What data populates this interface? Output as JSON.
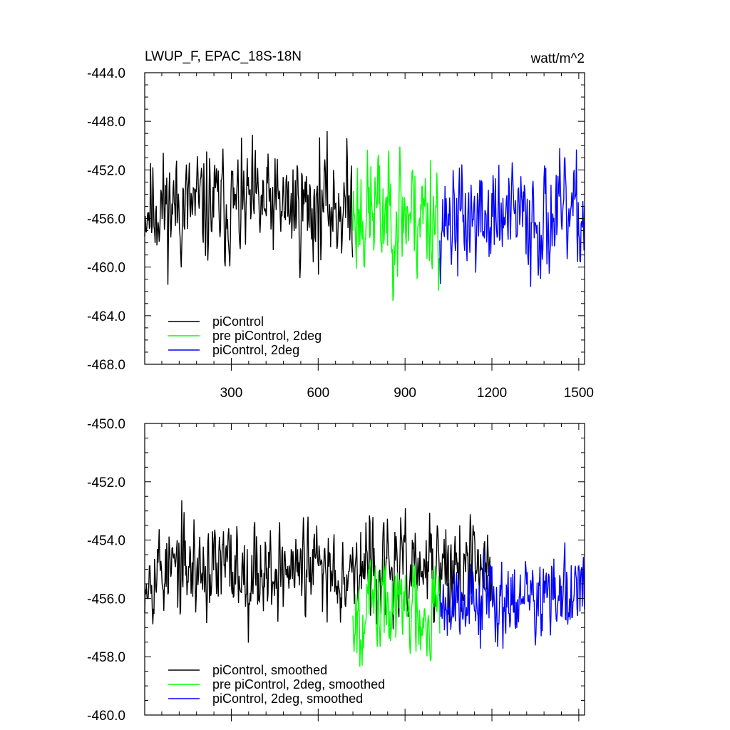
{
  "chart_data": [
    {
      "type": "line",
      "title": "LWUP_F, EPAC_18S-18N",
      "units": "watt/m^2",
      "xlabel": "",
      "ylabel": "",
      "xlim": [
        1,
        1520
      ],
      "ylim": [
        -468,
        -444
      ],
      "xticks": [
        300,
        600,
        900,
        1200,
        1500
      ],
      "xtick_labels": [
        "300",
        "600",
        "900",
        "1200",
        "1500"
      ],
      "yticks": [
        -444,
        -448,
        -452,
        -456,
        -460,
        -464,
        -468
      ],
      "ytick_labels": [
        "-444.0",
        "-448.0",
        "-452.0",
        "-456.0",
        "-460.0",
        "-464.0",
        "-468.0"
      ],
      "legend": "bottom-left",
      "grid": false,
      "series": [
        {
          "name": "piControl",
          "color": "#000000",
          "x_range": [
            1,
            720
          ],
          "mean": -455.0,
          "amp": 3.0,
          "seed": 11
        },
        {
          "name": "pre piControl, 2deg",
          "color": "#00ff00",
          "x_range": [
            720,
            1020
          ],
          "mean": -455.5,
          "amp": 3.6,
          "seed": 23
        },
        {
          "name": "piControl, 2deg",
          "color": "#0000ff",
          "x_range": [
            1020,
            1520
          ],
          "mean": -456.0,
          "amp": 3.0,
          "seed": 37
        }
      ]
    },
    {
      "type": "line",
      "title": "",
      "xlabel": "",
      "ylabel": "",
      "xlim": [
        1,
        1520
      ],
      "ylim": [
        -460,
        -450
      ],
      "xticks": [
        300,
        600,
        900,
        1200,
        1500
      ],
      "xtick_labels": [],
      "yticks": [
        -450,
        -452,
        -454,
        -456,
        -458,
        -460
      ],
      "ytick_labels": [
        "-450.0",
        "-452.0",
        "-454.0",
        "-456.0",
        "-458.0",
        "-460.0"
      ],
      "legend": "bottom-left",
      "grid": false,
      "series": [
        {
          "name": "piControl, smoothed",
          "color": "#000000",
          "x_range": [
            1,
            1200
          ],
          "mean": -455.0,
          "amp": 1.1,
          "seed": 53
        },
        {
          "name": "pre piControl, 2deg, smoothed",
          "color": "#00ff00",
          "x_range": [
            720,
            1020
          ],
          "mean": -456.3,
          "amp": 1.2,
          "seed": 67
        },
        {
          "name": "piControl, 2deg, smoothed",
          "color": "#0000ff",
          "x_range": [
            1020,
            1520
          ],
          "mean": -456.0,
          "amp": 1.0,
          "seed": 79
        }
      ]
    }
  ]
}
